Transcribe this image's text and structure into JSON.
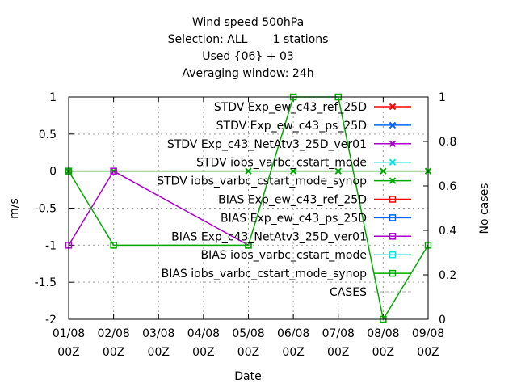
{
  "chart_data": {
    "type": "line",
    "title_lines": [
      "Wind speed 500hPa",
      "Selection: ALL       1 stations",
      "Used {06} + 03",
      "Averaging window: 24h"
    ],
    "xlabel": "Date",
    "ylabel": "m/s",
    "y2label": "No cases",
    "categories": [
      [
        "01/08",
        "00Z"
      ],
      [
        "02/08",
        "00Z"
      ],
      [
        "03/08",
        "00Z"
      ],
      [
        "04/08",
        "00Z"
      ],
      [
        "05/08",
        "00Z"
      ],
      [
        "06/08",
        "00Z"
      ],
      [
        "07/08",
        "00Z"
      ],
      [
        "08/08",
        "00Z"
      ],
      [
        "09/08",
        "00Z"
      ]
    ],
    "ylim": [
      -2,
      1
    ],
    "yticks": [
      1,
      0.5,
      0,
      -0.5,
      -1,
      -1.5,
      -2
    ],
    "ytick_labels": [
      "1",
      "0.5",
      "0",
      "-0.5",
      "-1",
      "-1.5",
      "-2"
    ],
    "y2lim": [
      0,
      1
    ],
    "y2ticks": [
      1,
      0.8,
      0.6,
      0.4,
      0.2,
      0
    ],
    "y2tick_labels": [
      "1",
      "0.8",
      "0.6",
      "0.4",
      "0.2",
      "0"
    ],
    "grid": true,
    "legend_position": "top-right",
    "series": [
      {
        "name": "STDV Exp_ew_c43_ref_25D",
        "color": "#ff0000",
        "marker": "x",
        "axis": "y",
        "x": [],
        "values": []
      },
      {
        "name": "STDV Exp_ew_c43_ps_25D",
        "color": "#0066ff",
        "marker": "x",
        "axis": "y",
        "x": [],
        "values": []
      },
      {
        "name": "STDV Exp_c43_NetAtv3_25D_ver01",
        "color": "#aa00cc",
        "marker": "x",
        "axis": "y",
        "x": [],
        "values": []
      },
      {
        "name": "STDV iobs_varbc_cstart_mode",
        "color": "#00e6e6",
        "marker": "x",
        "axis": "y",
        "x": [],
        "values": []
      },
      {
        "name": "STDV iobs_varbc_cstart_mode_synop",
        "color": "#00aa00",
        "marker": "x",
        "axis": "y",
        "x": [
          "01/08 00Z",
          "02/08 00Z",
          "05/08 00Z",
          "06/08 00Z",
          "07/08 00Z",
          "08/08 00Z",
          "09/08 00Z"
        ],
        "values": [
          0,
          0,
          0,
          0,
          0,
          0,
          0
        ]
      },
      {
        "name": "BIAS Exp_ew_c43_ref_25D",
        "color": "#ff0000",
        "marker": "square",
        "axis": "y",
        "x": [],
        "values": []
      },
      {
        "name": "BIAS Exp_ew_c43_ps_25D",
        "color": "#0066ff",
        "marker": "square",
        "axis": "y",
        "x": [],
        "values": []
      },
      {
        "name": "BIAS Exp_c43_NetAtv3_25D_ver01",
        "color": "#aa00cc",
        "marker": "square",
        "axis": "y",
        "x": [
          "01/08 00Z",
          "02/08 00Z",
          "05/08 00Z"
        ],
        "values": [
          -1,
          0,
          -1
        ]
      },
      {
        "name": "BIAS iobs_varbc_cstart_mode",
        "color": "#00e6e6",
        "marker": "square",
        "axis": "y",
        "x": [],
        "values": []
      },
      {
        "name": "BIAS iobs_varbc_cstart_mode_synop",
        "color": "#00aa00",
        "marker": "square",
        "axis": "y",
        "x": [
          "01/08 00Z",
          "02/08 00Z",
          "05/08 00Z",
          "06/08 00Z",
          "07/08 00Z",
          "08/08 00Z",
          "09/08 00Z"
        ],
        "values": [
          0,
          -1,
          -1,
          1,
          1,
          -2,
          -1
        ]
      },
      {
        "name": "CASES",
        "color": "#aaaaaa",
        "marker": "none",
        "axis": "y2",
        "dashed": true,
        "x": [],
        "values": []
      }
    ]
  }
}
